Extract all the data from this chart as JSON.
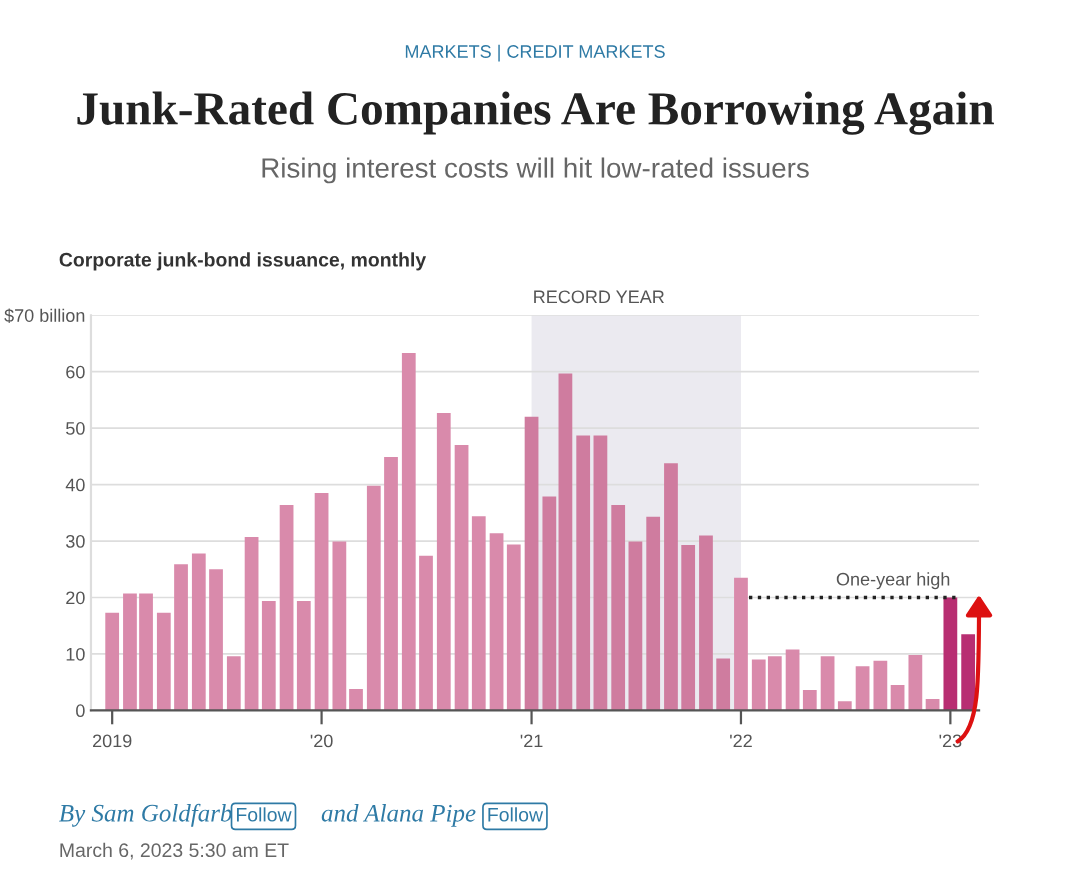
{
  "chart_data": {
    "type": "bar",
    "title": "Junk-Rated Companies Are Borrowing Again",
    "subtitle": "Rising interest costs will hit low-rated issuers",
    "x": [
      "2019-01",
      "2019-02",
      "2019-03",
      "2019-04",
      "2019-05",
      "2019-06",
      "2019-07",
      "2019-08",
      "2019-09",
      "2019-10",
      "2019-11",
      "2019-12",
      "2020-01",
      "2020-02",
      "2020-03",
      "2020-04",
      "2020-05",
      "2020-06",
      "2020-07",
      "2020-08",
      "2020-09",
      "2020-10",
      "2020-11",
      "2020-12",
      "2021-01",
      "2021-02",
      "2021-03",
      "2021-04",
      "2021-05",
      "2021-06",
      "2021-07",
      "2021-08",
      "2021-09",
      "2021-10",
      "2021-11",
      "2021-12",
      "2022-01",
      "2022-02",
      "2022-03",
      "2022-04",
      "2022-05",
      "2022-06",
      "2022-07",
      "2022-08",
      "2022-09",
      "2022-10",
      "2022-11",
      "2022-12",
      "2023-01",
      "2023-02"
    ],
    "values": [
      17.3,
      20.7,
      20.7,
      17.3,
      25.9,
      27.8,
      25,
      9.6,
      30.7,
      19.4,
      36.4,
      19.4,
      38.5,
      29.9,
      3.8,
      39.8,
      44.9,
      63.3,
      27.4,
      52.7,
      47,
      34.4,
      31.4,
      29.4,
      52,
      37.9,
      59.7,
      48.7,
      48.7,
      36.4,
      29.9,
      34.3,
      43.8,
      29.3,
      31,
      9.2,
      23.5,
      9,
      9.6,
      10.8,
      3.6,
      9.6,
      1.6,
      7.8,
      8.8,
      4.5,
      9.8,
      2,
      20,
      13.5
    ],
    "colors": [
      "#d98aab",
      "#d98aab",
      "#d98aab",
      "#d98aab",
      "#d98aab",
      "#d98aab",
      "#d98aab",
      "#d98aab",
      "#d98aab",
      "#d98aab",
      "#d98aab",
      "#d98aab",
      "#d98aab",
      "#d98aab",
      "#d98aab",
      "#d98aab",
      "#d98aab",
      "#d98aab",
      "#d98aab",
      "#d98aab",
      "#d98aab",
      "#d98aab",
      "#d98aab",
      "#d98aab",
      "#cf7c9f",
      "#cf7c9f",
      "#cf7c9f",
      "#cf7c9f",
      "#cf7c9f",
      "#cf7c9f",
      "#cf7c9f",
      "#cf7c9f",
      "#cf7c9f",
      "#cf7c9f",
      "#cf7c9f",
      "#cf7c9f",
      "#d98aab",
      "#d98aab",
      "#d98aab",
      "#d98aab",
      "#d98aab",
      "#d98aab",
      "#d98aab",
      "#d98aab",
      "#d98aab",
      "#d98aab",
      "#d98aab",
      "#d98aab",
      "#b82e72",
      "#b82e72"
    ],
    "xlim": [
      "2018-11-25",
      "2023-02-20"
    ],
    "xticks": [
      {
        "value": "2019-01-01",
        "label": "2019"
      },
      {
        "value": "2020-01-01",
        "label": "'20"
      },
      {
        "value": "2021-01-01",
        "label": "'21"
      },
      {
        "value": "2022-01-01",
        "label": "'22"
      },
      {
        "value": "2023-01-01",
        "label": "'23"
      }
    ],
    "ylim": [
      0,
      70
    ],
    "yticks": [
      0,
      10,
      20,
      30,
      40,
      50,
      60,
      {
        "value": 70,
        "label": "$70 billion"
      }
    ],
    "grid": "y",
    "bands": [
      {
        "axis": "x",
        "from": "2021-01-01",
        "to": "2022-01-01",
        "label": "RECORD YEAR",
        "color": "#ebeaf0"
      }
    ],
    "series": [
      {
        "type": "line",
        "x": [
          "2022-01-15",
          "2023-01-15"
        ],
        "values": [
          20,
          20
        ],
        "color": "#222222",
        "line_style": "dotted"
      }
    ],
    "annotations": [
      {
        "text": "One-year high",
        "x": "2023-01",
        "y": 20
      },
      "MARKETS | CREDIT MARKETS",
      "Corporate junk-bond issuance, monthly",
      "By Sam Goldfarb",
      "Follow",
      "and Alana Pipe",
      "Follow",
      "March 6, 2023 5:30 am ET"
    ]
  }
}
